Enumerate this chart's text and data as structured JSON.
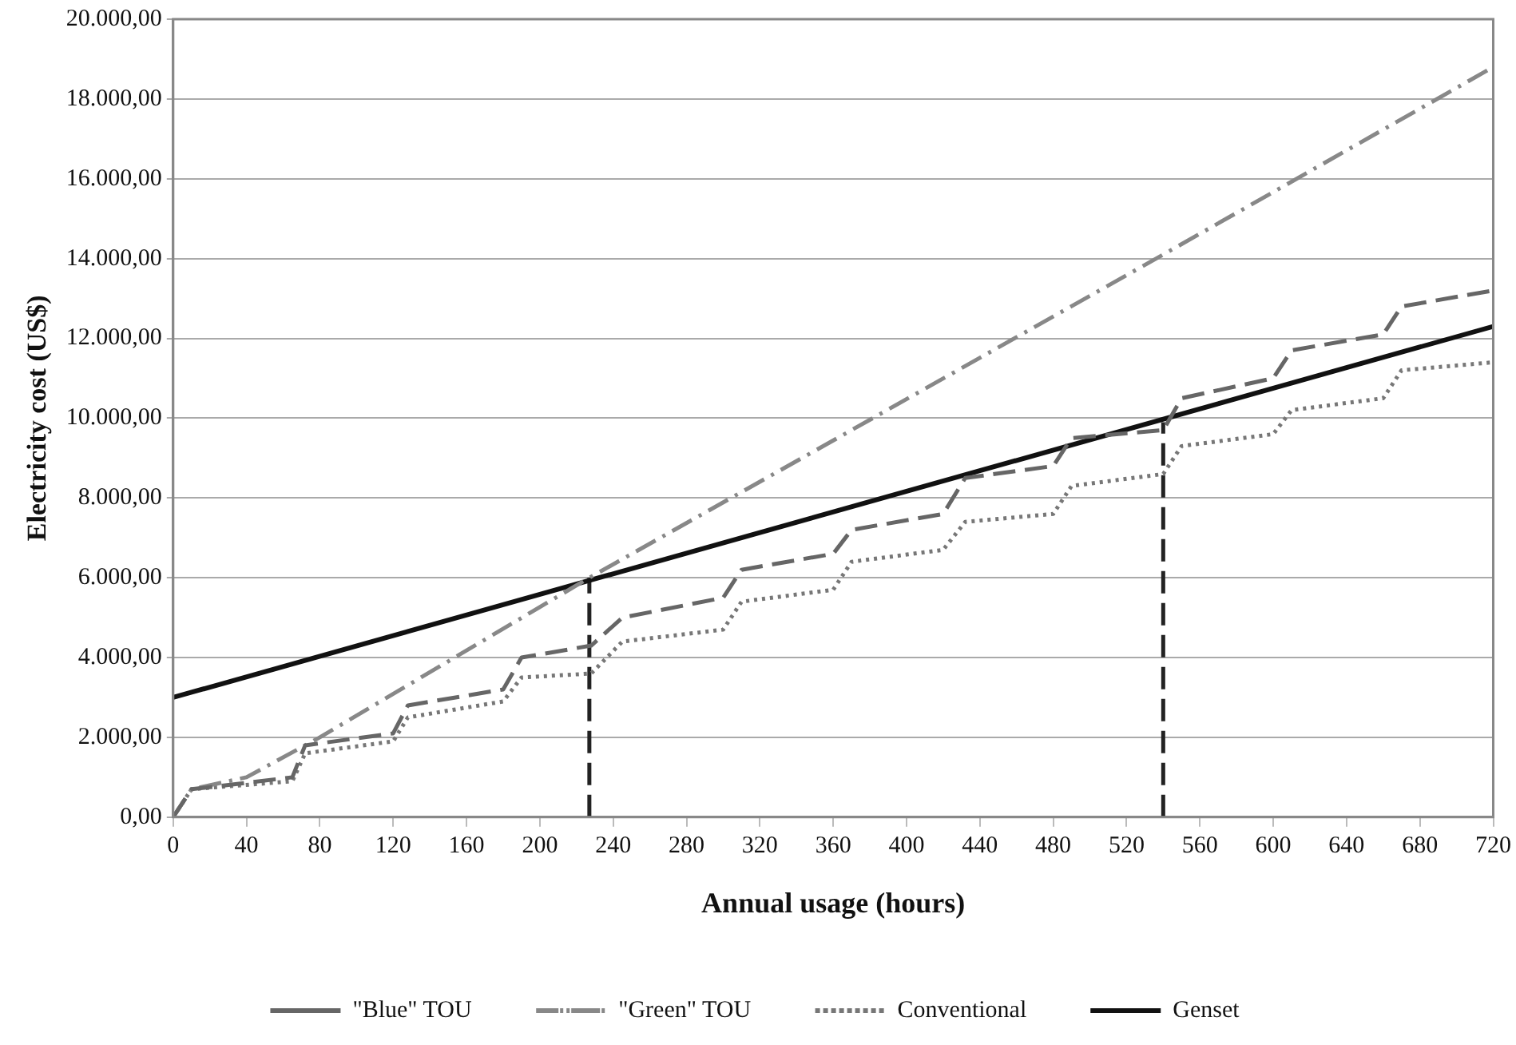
{
  "chart_data": {
    "type": "line",
    "xlabel": "Annual usage (hours)",
    "ylabel": "Electricity cost (US$)",
    "xlim": [
      0,
      720
    ],
    "xticks": [
      0,
      40,
      80,
      120,
      160,
      200,
      240,
      280,
      320,
      360,
      400,
      440,
      480,
      520,
      560,
      600,
      640,
      680,
      720
    ],
    "ylim": [
      0,
      20000
    ],
    "yticks": [
      {
        "value": 0,
        "label": "0,00"
      },
      {
        "value": 2000,
        "label": "2.000,00"
      },
      {
        "value": 4000,
        "label": "4.000,00"
      },
      {
        "value": 6000,
        "label": "6.000,00"
      },
      {
        "value": 8000,
        "label": "8.000,00"
      },
      {
        "value": 10000,
        "label": "10.000,00"
      },
      {
        "value": 12000,
        "label": "12.000,00"
      },
      {
        "value": 14000,
        "label": "14.000,00"
      },
      {
        "value": 16000,
        "label": "16.000,00"
      },
      {
        "value": 18000,
        "label": "18.000,00"
      },
      {
        "value": 20000,
        "label": "20.000,00"
      }
    ],
    "grid": "y",
    "legend": "bottom",
    "marker": "none",
    "series": [
      {
        "name": "\"Blue\" TOU",
        "color": "#666666",
        "line_style": "dashed",
        "x": [
          0,
          10,
          20,
          65,
          72,
          120,
          128,
          180,
          190,
          228,
          245,
          300,
          310,
          360,
          370,
          420,
          432,
          480,
          490,
          540,
          550,
          600,
          610,
          660,
          670,
          720
        ],
        "values": [
          0,
          700,
          750,
          1000,
          1800,
          2100,
          2800,
          3200,
          4000,
          4300,
          5000,
          5500,
          6200,
          6600,
          7200,
          7600,
          8500,
          8800,
          9500,
          9700,
          10500,
          11000,
          11700,
          12100,
          12800,
          13200
        ]
      },
      {
        "name": "\"Green\" TOU",
        "color": "#888888",
        "line_style": "dashdot",
        "x": [
          0,
          10,
          40,
          80,
          227,
          540,
          720
        ],
        "values": [
          0,
          700,
          1000,
          2000,
          6000,
          14100,
          18800
        ]
      },
      {
        "name": "Conventional",
        "color": "#777777",
        "line_style": "dotted",
        "x": [
          0,
          10,
          65,
          72,
          120,
          128,
          180,
          190,
          228,
          245,
          300,
          310,
          360,
          370,
          420,
          432,
          480,
          490,
          540,
          550,
          600,
          610,
          660,
          670,
          720
        ],
        "values": [
          0,
          700,
          900,
          1600,
          1900,
          2500,
          2900,
          3500,
          3600,
          4400,
          4700,
          5400,
          5700,
          6400,
          6700,
          7400,
          7600,
          8300,
          8600,
          9300,
          9600,
          10200,
          10500,
          11200,
          11400
        ]
      },
      {
        "name": "Genset",
        "color": "#111111",
        "line_style": "solid",
        "x": [
          0,
          720
        ],
        "values": [
          3000,
          12300
        ]
      },
      {
        "color": "#222222",
        "line_style": "dashed",
        "x": [
          227,
          227
        ],
        "values": [
          0,
          6000
        ]
      },
      {
        "color": "#222222",
        "line_style": "dashed",
        "x": [
          540,
          540
        ],
        "values": [
          0,
          9900
        ]
      }
    ]
  }
}
